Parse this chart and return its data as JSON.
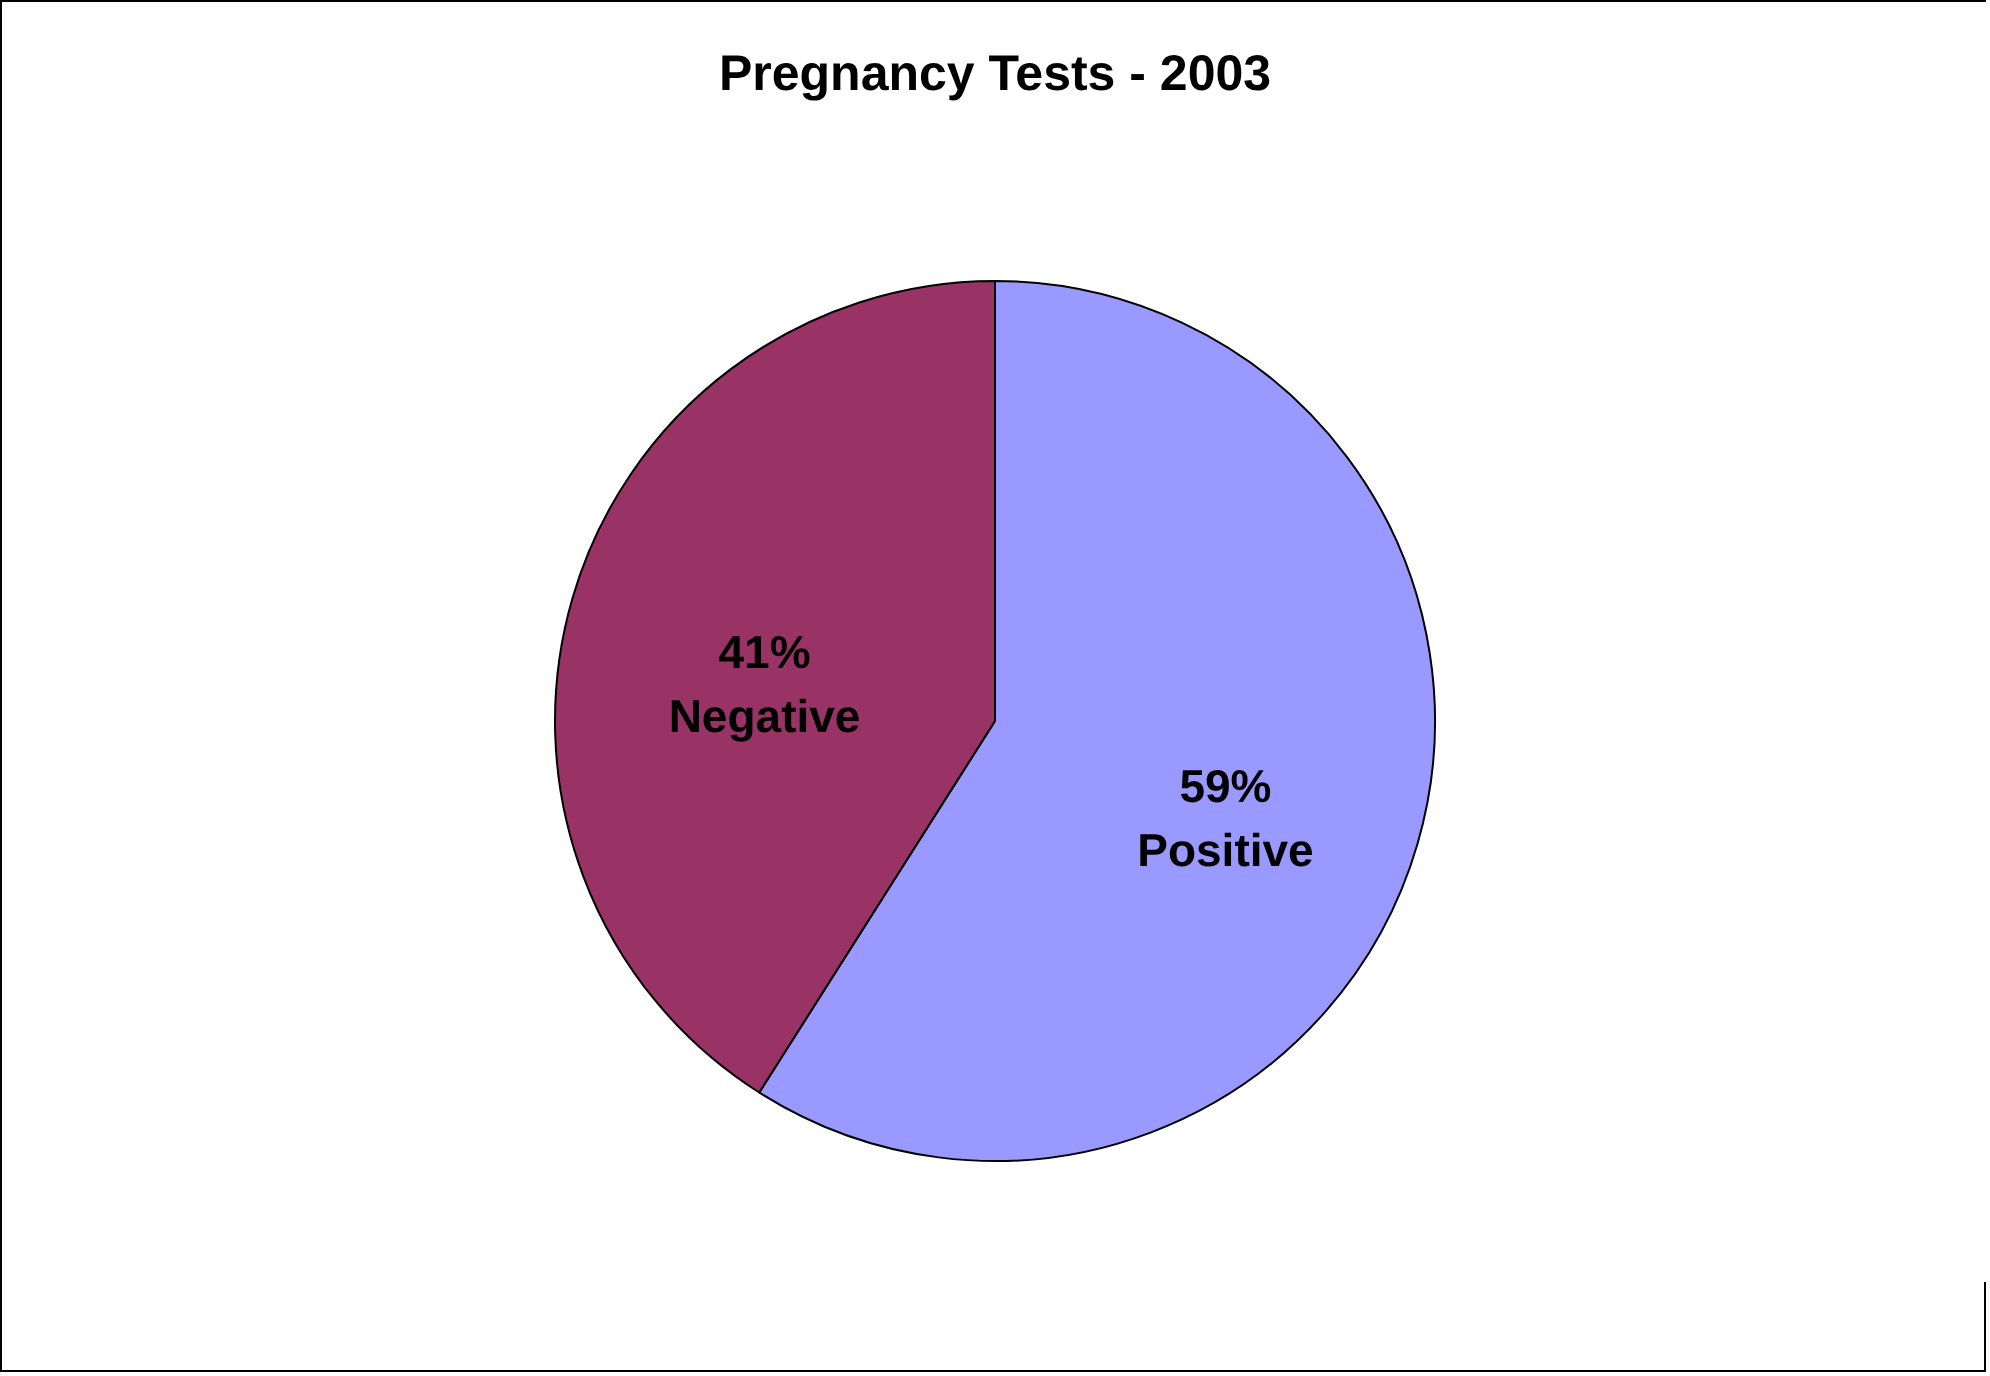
{
  "chart_data": {
    "type": "pie",
    "title": "Pregnancy Tests - 2003",
    "categories": [
      "Positive",
      "Negative"
    ],
    "values": [
      59,
      41
    ],
    "colors": [
      "#9999ff",
      "#993366"
    ],
    "value_labels": [
      "59%",
      "41%"
    ]
  }
}
